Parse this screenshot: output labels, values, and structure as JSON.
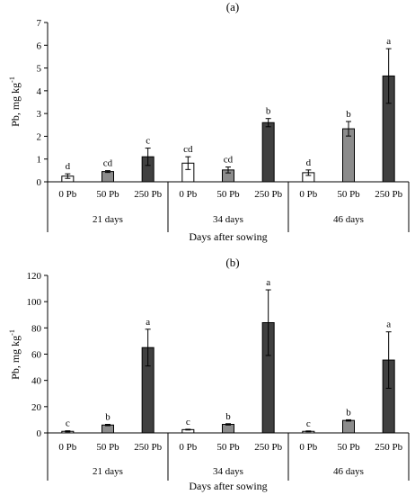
{
  "chart_data": [
    {
      "type": "bar",
      "title": "(a)",
      "ylabel": "Pb, mg kg",
      "ylabel_superscript": "-1",
      "xlabel": "Days after sowing",
      "ylim": [
        0,
        7
      ],
      "yticks": [
        "0",
        "1",
        "2",
        "3",
        "4",
        "5",
        "6",
        "7"
      ],
      "groups": [
        {
          "label": "21 days",
          "bars": [
            {
              "label": "0 Pb",
              "value": 0.25,
              "error": 0.1,
              "letter": "d",
              "fill": "#ffffff"
            },
            {
              "label": "50 Pb",
              "value": 0.45,
              "error": 0.04,
              "letter": "cd",
              "fill": "#8c8c8c"
            },
            {
              "label": "250 Pb",
              "value": 1.1,
              "error": 0.38,
              "letter": "c",
              "fill": "#404040"
            }
          ]
        },
        {
          "label": "34 days",
          "bars": [
            {
              "label": "0 Pb",
              "value": 0.82,
              "error": 0.28,
              "letter": "cd",
              "fill": "#ffffff"
            },
            {
              "label": "50 Pb",
              "value": 0.52,
              "error": 0.13,
              "letter": "cd",
              "fill": "#8c8c8c"
            },
            {
              "label": "250 Pb",
              "value": 2.6,
              "error": 0.18,
              "letter": "b",
              "fill": "#404040"
            }
          ]
        },
        {
          "label": "46 days",
          "bars": [
            {
              "label": "0 Pb",
              "value": 0.4,
              "error": 0.12,
              "letter": "d",
              "fill": "#ffffff"
            },
            {
              "label": "50 Pb",
              "value": 2.33,
              "error": 0.32,
              "letter": "b",
              "fill": "#8c8c8c"
            },
            {
              "label": "250 Pb",
              "value": 4.65,
              "error": 1.2,
              "letter": "a",
              "fill": "#404040"
            }
          ]
        }
      ]
    },
    {
      "type": "bar",
      "title": "(b)",
      "ylabel": "Pb, mg kg",
      "ylabel_superscript": "-1",
      "xlabel": "Days after sowing",
      "ylim": [
        0,
        120
      ],
      "yticks": [
        "0",
        "20",
        "40",
        "60",
        "80",
        "100",
        "120"
      ],
      "groups": [
        {
          "label": "21 days",
          "bars": [
            {
              "label": "0 Pb",
              "value": 1.2,
              "error": 0.4,
              "letter": "c",
              "fill": "#ffffff"
            },
            {
              "label": "50 Pb",
              "value": 6.0,
              "error": 0.5,
              "letter": "b",
              "fill": "#8c8c8c"
            },
            {
              "label": "250 Pb",
              "value": 65,
              "error": 14,
              "letter": "a",
              "fill": "#404040"
            }
          ]
        },
        {
          "label": "34 days",
          "bars": [
            {
              "label": "0 Pb",
              "value": 2.5,
              "error": 0.3,
              "letter": "c",
              "fill": "#ffffff"
            },
            {
              "label": "50 Pb",
              "value": 6.5,
              "error": 0.5,
              "letter": "b",
              "fill": "#8c8c8c"
            },
            {
              "label": "250 Pb",
              "value": 84,
              "error": 25,
              "letter": "a",
              "fill": "#404040"
            }
          ]
        },
        {
          "label": "46 days",
          "bars": [
            {
              "label": "0 Pb",
              "value": 1.2,
              "error": 0.3,
              "letter": "c",
              "fill": "#ffffff"
            },
            {
              "label": "50 Pb",
              "value": 9.5,
              "error": 0.5,
              "letter": "b",
              "fill": "#8c8c8c"
            },
            {
              "label": "250 Pb",
              "value": 55.5,
              "error": 21.5,
              "letter": "a",
              "fill": "#404040"
            }
          ]
        }
      ]
    }
  ]
}
